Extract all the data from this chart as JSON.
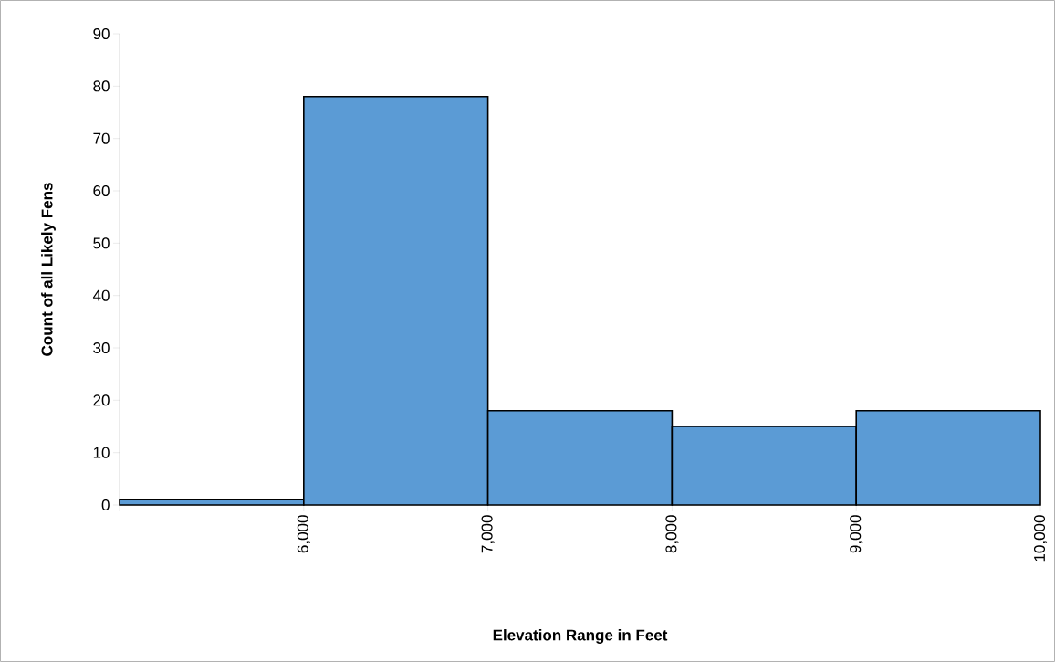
{
  "chart_data": {
    "type": "histogram",
    "xlabel": "Elevation Range in Feet",
    "ylabel": "Count of all Likely Fens",
    "bins": [
      5000,
      6000,
      7000,
      8000,
      9000,
      10000
    ],
    "values": [
      1,
      78,
      18,
      15,
      18
    ],
    "color": "#5b9bd5",
    "xlim": [
      5000,
      10000
    ],
    "xticks": [
      {
        "value": 5000,
        "label": null
      },
      {
        "value": 6000,
        "label": "6,000"
      },
      {
        "value": 7000,
        "label": "7,000"
      },
      {
        "value": 8000,
        "label": "8,000"
      },
      {
        "value": 9000,
        "label": "9,000"
      },
      {
        "value": 10000,
        "label": "10,000"
      }
    ],
    "ylim": [
      0,
      90
    ],
    "yticks": [
      0,
      10,
      20,
      30,
      40,
      50,
      60,
      70,
      80,
      90
    ]
  }
}
